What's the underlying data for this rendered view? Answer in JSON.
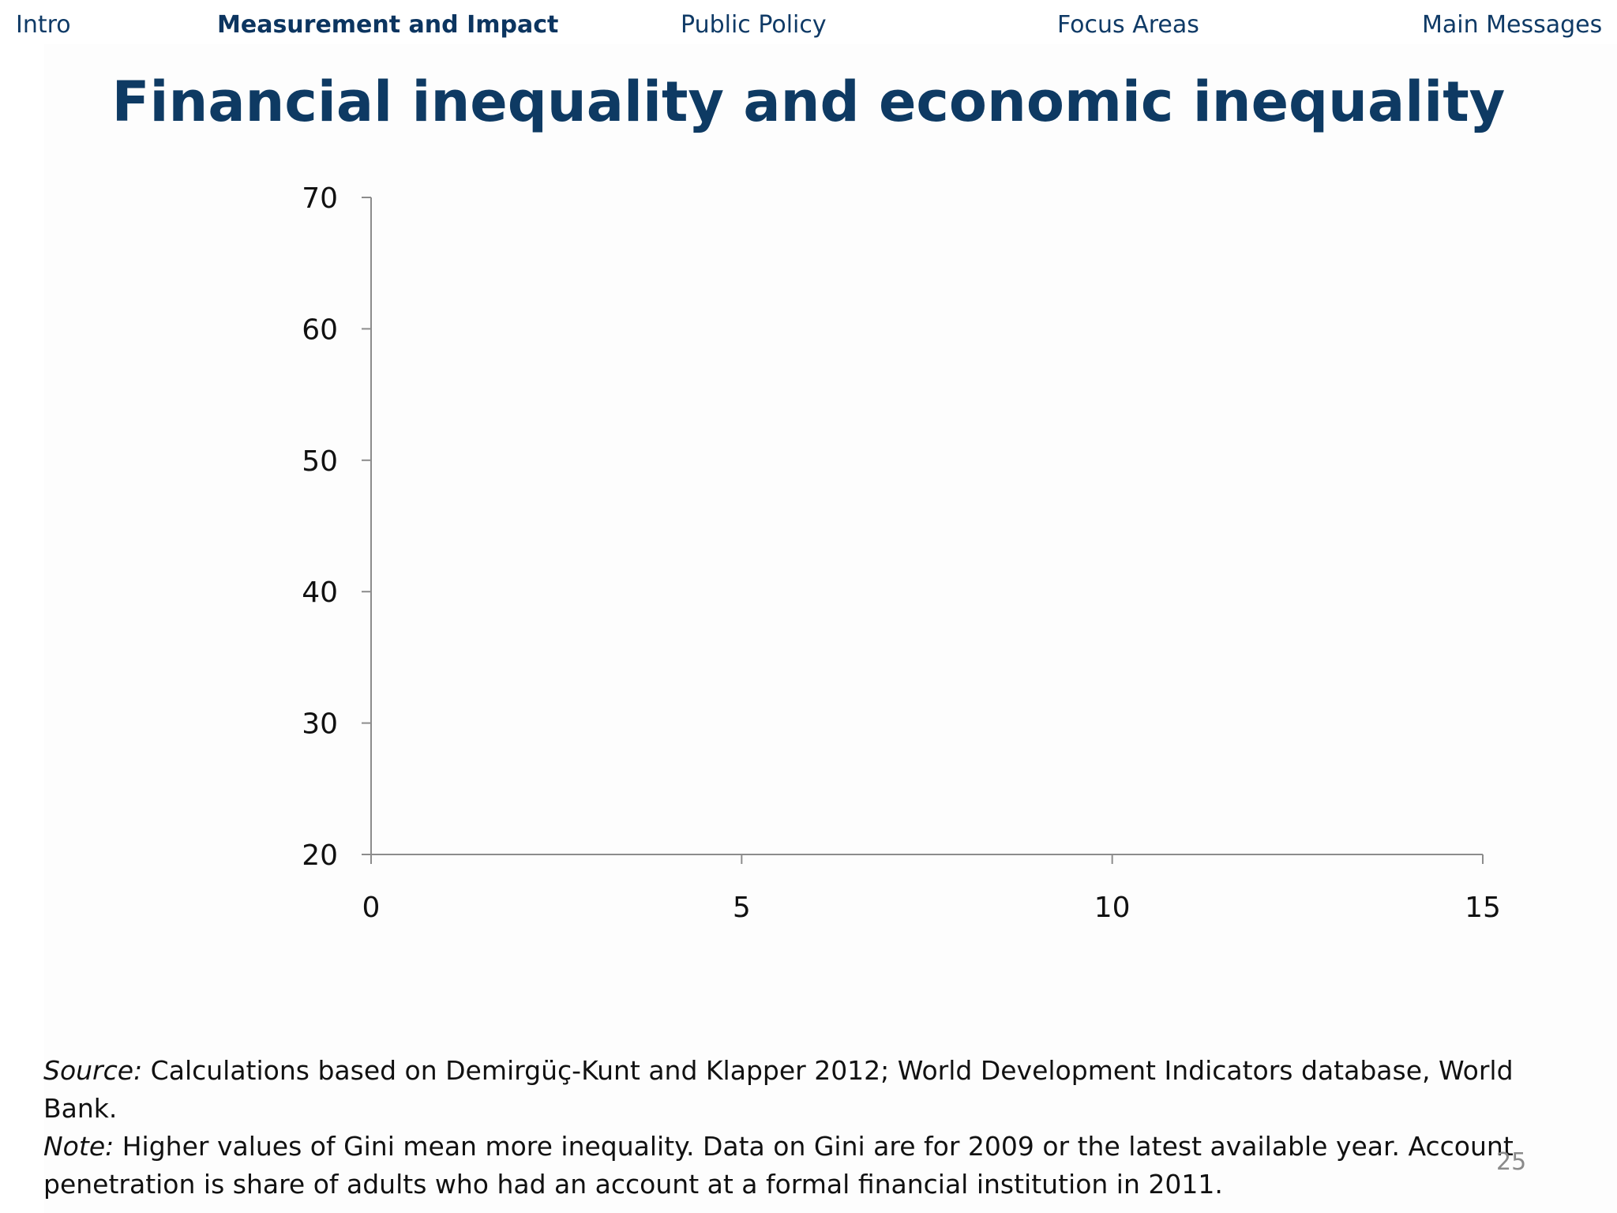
{
  "nav": {
    "items": [
      "Intro",
      "Measurement and Impact",
      "Public Policy",
      "Focus Areas",
      "Main Messages"
    ],
    "active": "Measurement and Impact"
  },
  "title": "Financial inequality and economic inequality",
  "chart_data": {
    "type": "scatter",
    "title": "Financial inequality and economic inequality",
    "xlabel": "",
    "ylabel": "",
    "xlim": [
      0,
      15
    ],
    "ylim": [
      20,
      70
    ],
    "x_ticks": [
      0,
      5,
      10,
      15
    ],
    "y_ticks": [
      20,
      30,
      40,
      50,
      60,
      70
    ],
    "grid": false,
    "series": []
  },
  "footnote": {
    "source_label": "Source:",
    "source_text": " Calculations based on Demirgüç-Kunt and Klapper 2012; World Development Indicators database, World Bank.",
    "note_label": "Note:",
    "note_text": " Higher values of Gini mean more inequality. Data on Gini are for 2009 or the latest available year. Account penetration is share of adults who had an account at a formal financial institution in 2011."
  },
  "page_number": "25",
  "colors": {
    "nav": "#0f3a66",
    "title": "#0e3a63",
    "axis": "#8c8c8c",
    "text": "#111111",
    "page_number": "#8a8a8a"
  }
}
